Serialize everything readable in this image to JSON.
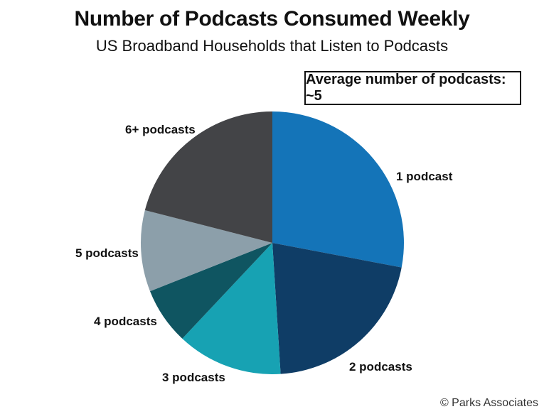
{
  "header": {
    "title": "Number of Podcasts Consumed Weekly",
    "subtitle": "US Broadband Households that Listen to Podcasts"
  },
  "annotation": {
    "average_label": "Average number of podcasts: ~5"
  },
  "footer": {
    "copyright": "© Parks Associates"
  },
  "chart_data": {
    "type": "pie",
    "title": "Number of Podcasts Consumed Weekly",
    "subtitle": "US Broadband Households that Listen to Podcasts",
    "start": "12 o'clock",
    "direction": "clockwise",
    "categories": [
      "1 podcast",
      "2 podcasts",
      "3 podcasts",
      "4 podcasts",
      "5 podcasts",
      "6+ podcasts"
    ],
    "values": [
      28,
      21,
      13,
      7,
      10,
      21
    ],
    "value_units": "approximate percent of households",
    "colors": [
      "#1474b8",
      "#0f3d66",
      "#17a2b3",
      "#0f5561",
      "#8c9faa",
      "#434447"
    ],
    "legend": "none",
    "grid": false
  }
}
